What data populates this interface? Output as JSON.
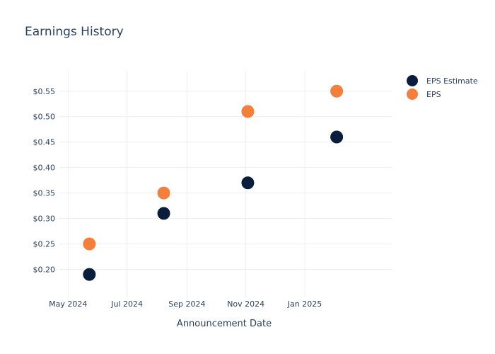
{
  "chart_data": {
    "type": "scatter",
    "title": "Earnings History",
    "xlabel": "Announcement Date",
    "ylabel": "",
    "x_ticks": [
      {
        "date": "2024-05-01",
        "label": "May 2024"
      },
      {
        "date": "2024-07-01",
        "label": "Jul 2024"
      },
      {
        "date": "2024-09-01",
        "label": "Sep 2024"
      },
      {
        "date": "2024-11-01",
        "label": "Nov 2024"
      },
      {
        "date": "2025-01-01",
        "label": "Jan 2025"
      }
    ],
    "xlim": [
      "2024-04-22",
      "2025-04-01"
    ],
    "y_ticks": [
      {
        "value": 0.2,
        "label": "$0.20"
      },
      {
        "value": 0.25,
        "label": "$0.25"
      },
      {
        "value": 0.3,
        "label": "$0.30"
      },
      {
        "value": 0.35,
        "label": "$0.35"
      },
      {
        "value": 0.4,
        "label": "$0.40"
      },
      {
        "value": 0.45,
        "label": "$0.45"
      },
      {
        "value": 0.5,
        "label": "$0.50"
      },
      {
        "value": 0.55,
        "label": "$0.55"
      }
    ],
    "ylim": [
      0.145,
      0.59
    ],
    "grid": true,
    "legend_position": "top-right",
    "series": [
      {
        "name": "EPS Estimate",
        "color": "#0b1d3d",
        "points": [
          {
            "x": "2024-05-23",
            "y": 0.19
          },
          {
            "x": "2024-08-08",
            "y": 0.31
          },
          {
            "x": "2024-11-03",
            "y": 0.37
          },
          {
            "x": "2025-02-03",
            "y": 0.46
          }
        ]
      },
      {
        "name": "EPS",
        "color": "#f47f3a",
        "points": [
          {
            "x": "2024-05-23",
            "y": 0.25
          },
          {
            "x": "2024-08-08",
            "y": 0.35
          },
          {
            "x": "2024-11-03",
            "y": 0.51
          },
          {
            "x": "2025-02-03",
            "y": 0.55
          }
        ]
      }
    ]
  }
}
